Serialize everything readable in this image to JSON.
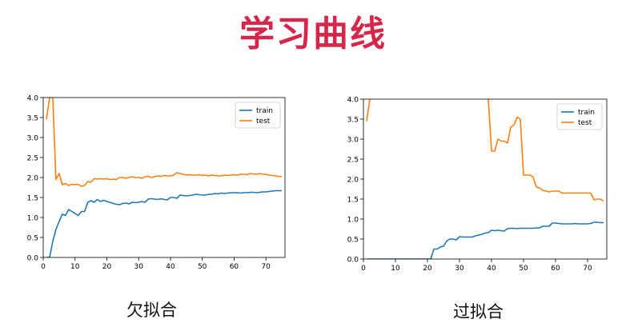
{
  "page": {
    "title": "学习曲线",
    "title_color": "#d6264a"
  },
  "charts": [
    {
      "caption": "欠拟合",
      "chart_data": {
        "type": "line",
        "xlim": [
          0,
          76
        ],
        "ylim": [
          0,
          4.0
        ],
        "xticks": [
          "0",
          "10",
          "20",
          "30",
          "40",
          "50",
          "60",
          "70"
        ],
        "yticks": [
          "0.0",
          "0.5",
          "1.0",
          "1.5",
          "2.0",
          "2.5",
          "3.0",
          "3.5",
          "4.0"
        ],
        "legend": "top-right",
        "grid": false,
        "series": [
          {
            "name": "train",
            "color": "#1f77b4",
            "x": [
              1,
              2,
              3,
              4,
              5,
              6,
              7,
              8,
              9,
              10,
              11,
              12,
              13,
              14,
              15,
              16,
              17,
              18,
              19,
              20,
              21,
              22,
              23,
              24,
              25,
              26,
              27,
              28,
              29,
              30,
              31,
              32,
              33,
              34,
              35,
              36,
              37,
              38,
              39,
              40,
              41,
              42,
              43,
              44,
              45,
              46,
              47,
              48,
              49,
              50,
              51,
              52,
              53,
              54,
              55,
              56,
              57,
              58,
              59,
              60,
              61,
              62,
              63,
              64,
              65,
              66,
              67,
              68,
              69,
              70,
              71,
              72,
              73,
              74,
              75
            ],
            "y": [
              0.0,
              0.0,
              0.4,
              0.7,
              0.9,
              1.08,
              1.05,
              1.2,
              1.15,
              1.1,
              1.05,
              1.15,
              1.15,
              1.38,
              1.42,
              1.38,
              1.45,
              1.4,
              1.43,
              1.4,
              1.38,
              1.35,
              1.33,
              1.32,
              1.35,
              1.36,
              1.34,
              1.38,
              1.37,
              1.38,
              1.4,
              1.38,
              1.46,
              1.47,
              1.46,
              1.45,
              1.47,
              1.45,
              1.44,
              1.5,
              1.5,
              1.48,
              1.56,
              1.55,
              1.54,
              1.55,
              1.56,
              1.58,
              1.57,
              1.56,
              1.56,
              1.58,
              1.58,
              1.6,
              1.59,
              1.61,
              1.6,
              1.61,
              1.62,
              1.62,
              1.62,
              1.61,
              1.62,
              1.62,
              1.63,
              1.63,
              1.62,
              1.63,
              1.64,
              1.64,
              1.65,
              1.66,
              1.67,
              1.67,
              1.67
            ]
          },
          {
            "name": "test",
            "color": "#ff7f0e",
            "x": [
              1,
              2,
              3,
              4,
              5,
              6,
              7,
              8,
              9,
              10,
              11,
              12,
              13,
              14,
              15,
              16,
              17,
              18,
              19,
              20,
              21,
              22,
              23,
              24,
              25,
              26,
              27,
              28,
              29,
              30,
              31,
              32,
              33,
              34,
              35,
              36,
              37,
              38,
              39,
              40,
              41,
              42,
              43,
              44,
              45,
              46,
              47,
              48,
              49,
              50,
              51,
              52,
              53,
              54,
              55,
              56,
              57,
              58,
              59,
              60,
              61,
              62,
              63,
              64,
              65,
              66,
              67,
              68,
              69,
              70,
              71,
              72,
              73,
              74,
              75
            ],
            "y": [
              3.45,
              4.0,
              4.0,
              1.95,
              2.1,
              1.82,
              1.85,
              1.8,
              1.83,
              1.82,
              1.83,
              1.78,
              1.8,
              1.9,
              1.88,
              1.97,
              1.96,
              1.97,
              1.96,
              1.97,
              1.95,
              1.96,
              1.95,
              2.0,
              2.0,
              1.98,
              2.0,
              2.02,
              2.0,
              2.0,
              1.98,
              2.02,
              2.03,
              2.0,
              2.02,
              2.04,
              2.03,
              2.05,
              2.04,
              2.04,
              2.06,
              2.12,
              2.1,
              2.08,
              2.06,
              2.07,
              2.06,
              2.06,
              2.07,
              2.05,
              2.06,
              2.04,
              2.06,
              2.05,
              2.04,
              2.04,
              2.06,
              2.05,
              2.06,
              2.07,
              2.06,
              2.08,
              2.08,
              2.07,
              2.1,
              2.09,
              2.08,
              2.1,
              2.08,
              2.08,
              2.06,
              2.05,
              2.04,
              2.03,
              2.02
            ]
          }
        ]
      }
    },
    {
      "caption": "过拟合",
      "chart_data": {
        "type": "line",
        "xlim": [
          0,
          76
        ],
        "ylim": [
          0,
          4.0
        ],
        "xticks": [
          "0",
          "10",
          "20",
          "30",
          "40",
          "50",
          "60",
          "70"
        ],
        "yticks": [
          "0.0",
          "0.5",
          "1.0",
          "1.5",
          "2.0",
          "2.5",
          "3.0",
          "3.5",
          "4.0"
        ],
        "legend": "top-right",
        "grid": false,
        "series": [
          {
            "name": "train",
            "color": "#1f77b4",
            "x": [
              1,
              2,
              3,
              4,
              5,
              6,
              7,
              8,
              9,
              10,
              11,
              12,
              13,
              14,
              15,
              16,
              17,
              18,
              19,
              20,
              21,
              22,
              23,
              24,
              25,
              26,
              27,
              28,
              29,
              30,
              31,
              32,
              33,
              34,
              35,
              36,
              37,
              38,
              39,
              40,
              41,
              42,
              43,
              44,
              45,
              46,
              47,
              48,
              49,
              50,
              51,
              52,
              53,
              54,
              55,
              56,
              57,
              58,
              59,
              60,
              61,
              62,
              63,
              64,
              65,
              66,
              67,
              68,
              69,
              70,
              71,
              72,
              73,
              74,
              75
            ],
            "y": [
              0,
              0,
              0,
              0,
              0,
              0,
              0,
              0,
              0,
              0,
              0,
              0,
              0,
              0,
              0,
              0,
              0,
              0,
              0,
              0,
              0.0,
              0.25,
              0.25,
              0.3,
              0.32,
              0.45,
              0.5,
              0.5,
              0.48,
              0.56,
              0.55,
              0.55,
              0.55,
              0.55,
              0.58,
              0.6,
              0.62,
              0.65,
              0.66,
              0.72,
              0.71,
              0.72,
              0.71,
              0.7,
              0.76,
              0.77,
              0.77,
              0.76,
              0.77,
              0.77,
              0.77,
              0.77,
              0.77,
              0.78,
              0.78,
              0.82,
              0.82,
              0.82,
              0.9,
              0.9,
              0.89,
              0.88,
              0.88,
              0.88,
              0.88,
              0.89,
              0.88,
              0.88,
              0.88,
              0.88,
              0.89,
              0.92,
              0.92,
              0.91,
              0.91
            ]
          },
          {
            "name": "test",
            "color": "#ff7f0e",
            "x": [
              1,
              2,
              3,
              4,
              5,
              6,
              7,
              8,
              9,
              10,
              11,
              12,
              13,
              14,
              15,
              16,
              17,
              18,
              19,
              20,
              21,
              22,
              23,
              24,
              25,
              26,
              27,
              28,
              29,
              30,
              31,
              32,
              33,
              34,
              35,
              36,
              37,
              38,
              39,
              40,
              41,
              42,
              43,
              44,
              45,
              46,
              47,
              48,
              49,
              50,
              51,
              52,
              53,
              54,
              55,
              56,
              57,
              58,
              59,
              60,
              61,
              62,
              63,
              64,
              65,
              66,
              67,
              68,
              69,
              70,
              71,
              72,
              73,
              74,
              75
            ],
            "y": [
              3.45,
              4.0,
              null,
              null,
              null,
              null,
              null,
              null,
              null,
              null,
              null,
              null,
              null,
              null,
              null,
              null,
              null,
              null,
              null,
              null,
              null,
              null,
              null,
              null,
              null,
              null,
              null,
              null,
              null,
              null,
              null,
              null,
              null,
              null,
              null,
              null,
              null,
              null,
              4.0,
              2.7,
              2.7,
              3.0,
              2.95,
              2.95,
              2.9,
              3.3,
              3.35,
              3.55,
              3.5,
              2.1,
              2.1,
              2.1,
              2.05,
              1.8,
              1.78,
              1.72,
              1.7,
              1.68,
              1.7,
              1.7,
              1.7,
              1.65,
              1.65,
              1.65,
              1.65,
              1.65,
              1.65,
              1.65,
              1.65,
              1.65,
              1.65,
              1.48,
              1.5,
              1.5,
              1.45
            ]
          }
        ]
      }
    }
  ]
}
